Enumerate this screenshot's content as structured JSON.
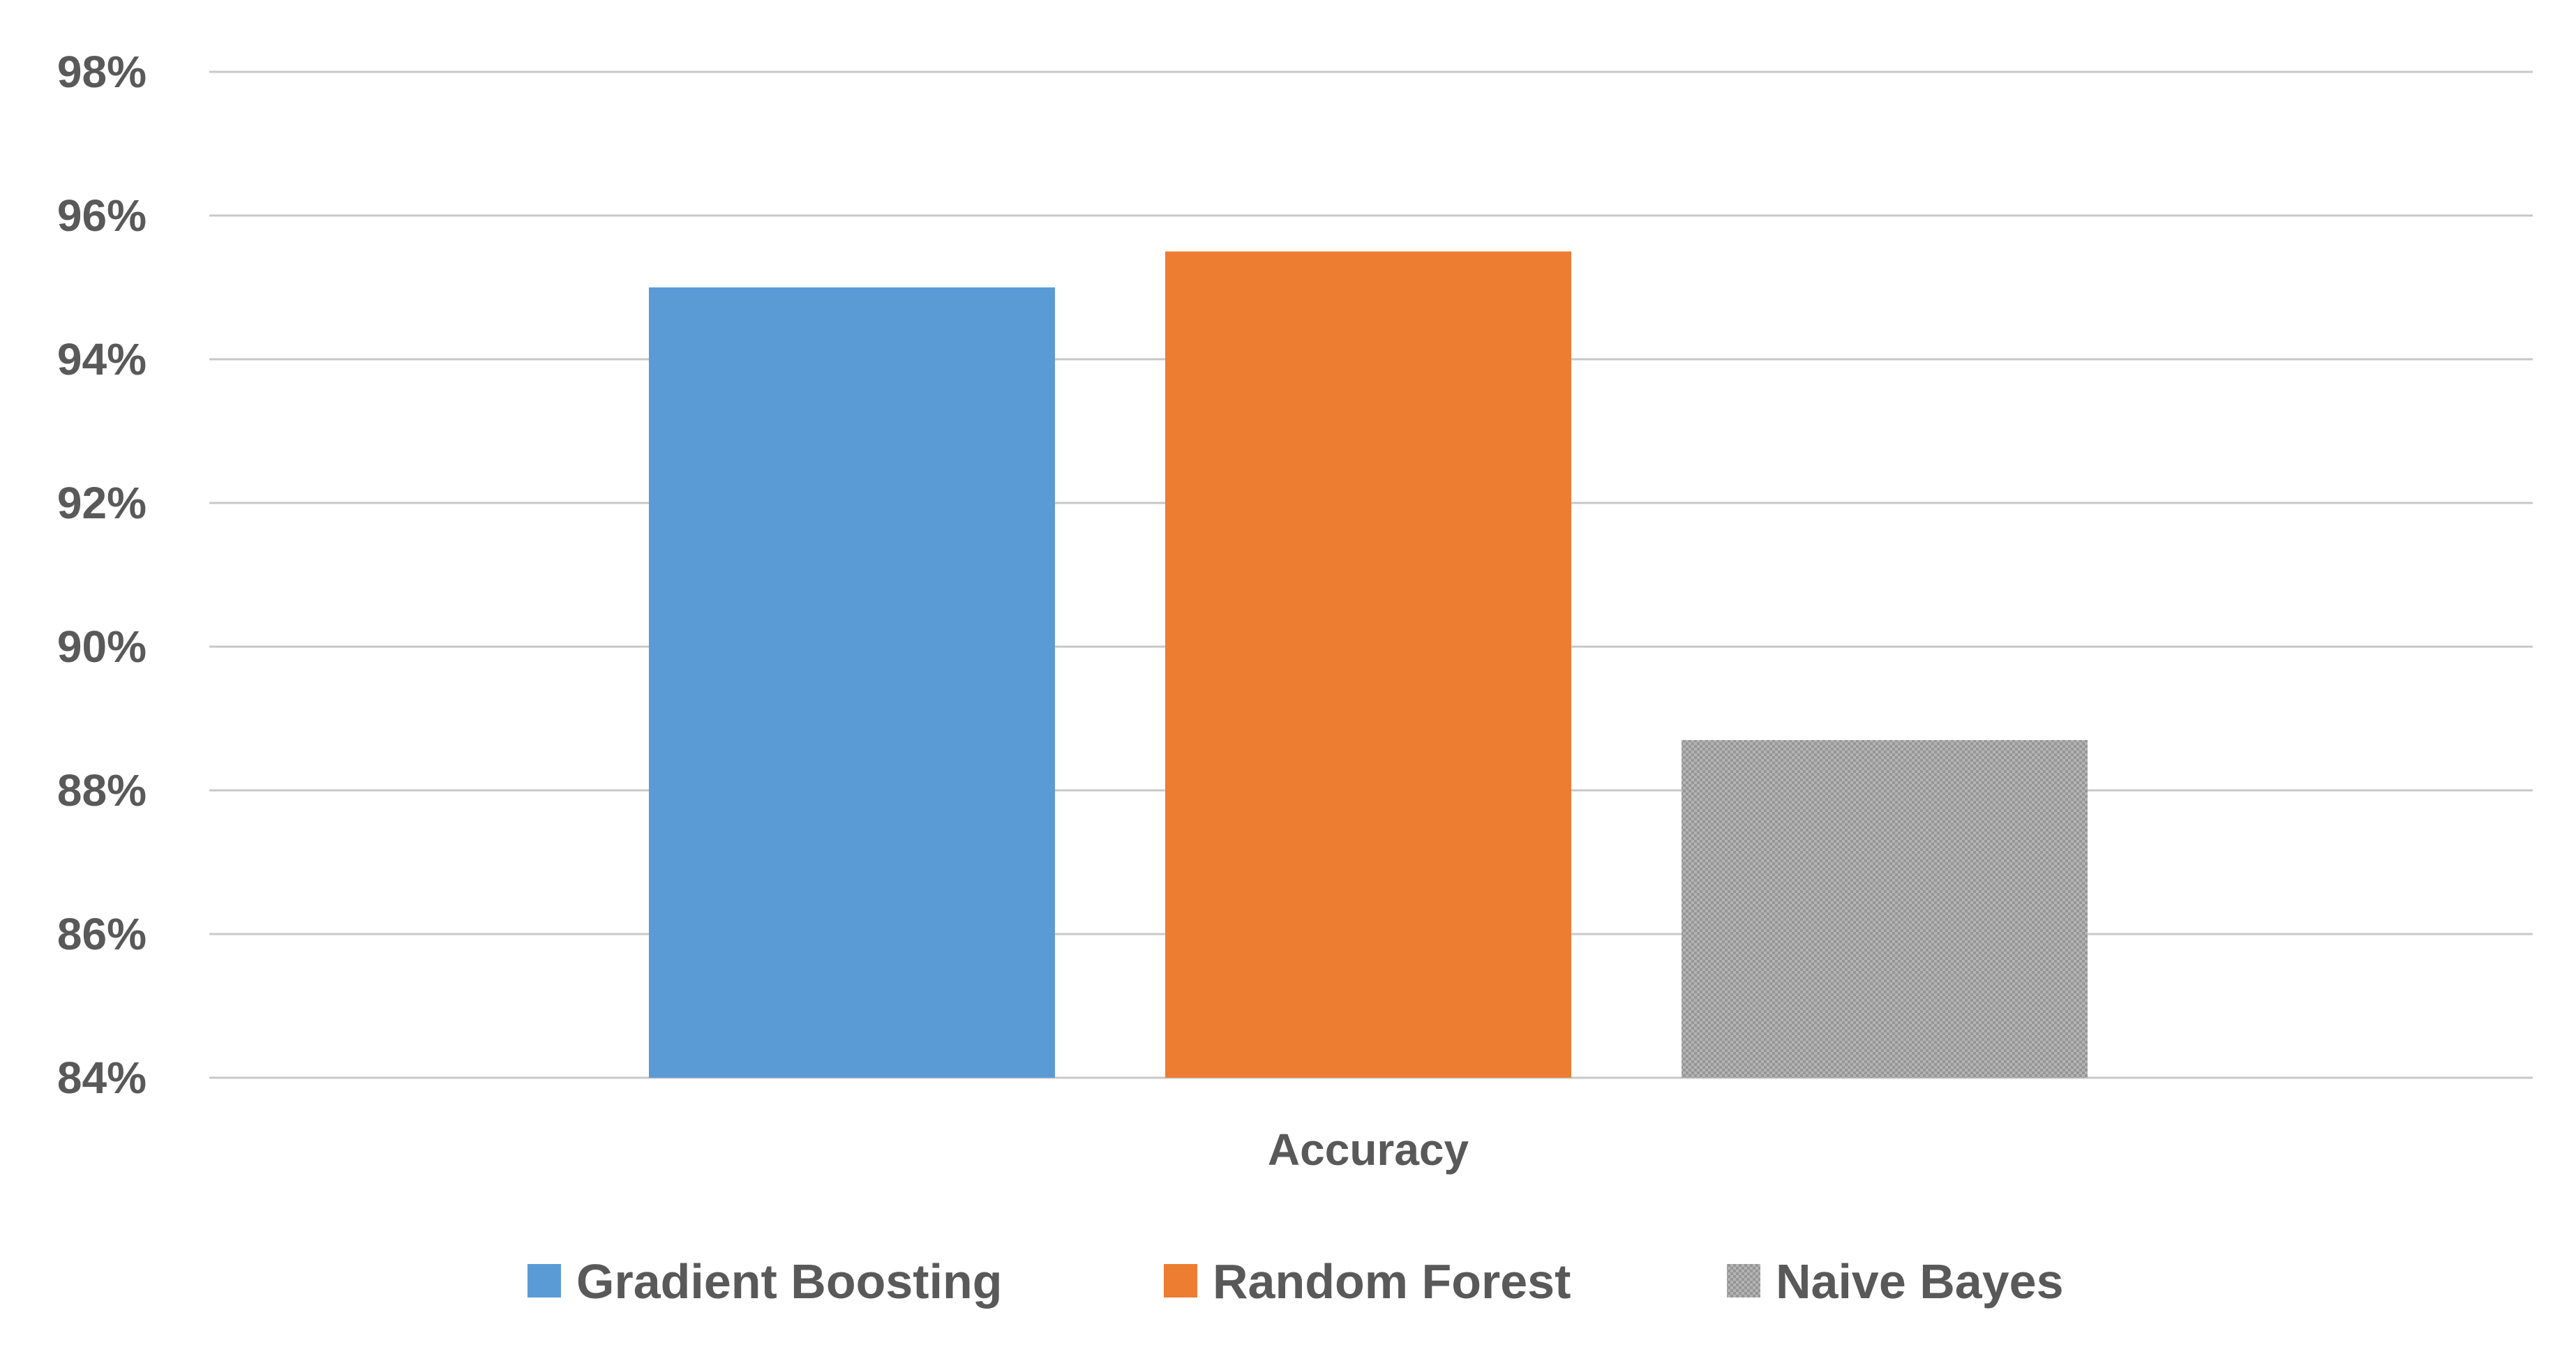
{
  "chart_data": {
    "type": "bar",
    "categories": [
      "Accuracy"
    ],
    "series": [
      {
        "name": "Gradient Boosting",
        "values": [
          95.0
        ],
        "color": "#5b9bd5",
        "pattern": "solid"
      },
      {
        "name": "Random Forest",
        "values": [
          95.5
        ],
        "color": "#ed7d31",
        "pattern": "solid"
      },
      {
        "name": "Naive Bayes",
        "values": [
          88.7
        ],
        "color": "#a5a5a5",
        "pattern": "dotted"
      }
    ],
    "title": "",
    "xlabel": "",
    "ylabel": "",
    "ylim": [
      84,
      98
    ],
    "y_ticks": [
      {
        "value": 84,
        "label": "84%"
      },
      {
        "value": 86,
        "label": "86%"
      },
      {
        "value": 88,
        "label": "88%"
      },
      {
        "value": 90,
        "label": "90%"
      },
      {
        "value": 92,
        "label": "92%"
      },
      {
        "value": 94,
        "label": "94%"
      },
      {
        "value": 96,
        "label": "96%"
      },
      {
        "value": 98,
        "label": "98%"
      }
    ],
    "grid": true,
    "legend_position": "bottom"
  }
}
